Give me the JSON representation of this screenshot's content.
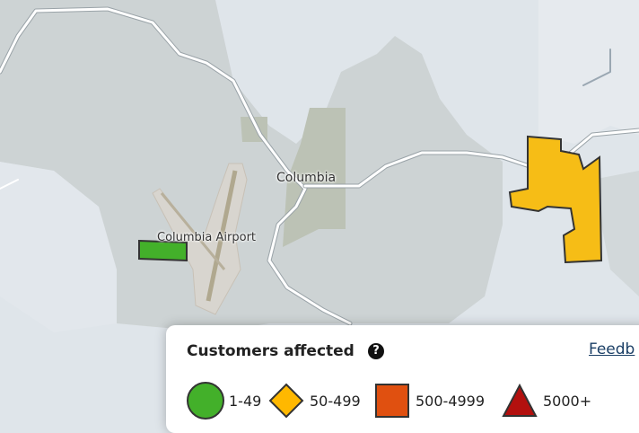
{
  "map": {
    "labels": {
      "city": "Columbia",
      "airport": "Columbia Airport"
    },
    "colors": {
      "background": "#dfe5ea",
      "land": "#c8cfcf",
      "park": "#b9c0b1",
      "road": "#ffffff"
    }
  },
  "legend": {
    "title": "Customers affected",
    "help_icon": "?",
    "feedback_link": "Feedb",
    "items": [
      {
        "label": "1-49",
        "shape": "circle",
        "color": "#43b02a"
      },
      {
        "label": "50-499",
        "shape": "diamond",
        "color": "#ffb800"
      },
      {
        "label": "500-4999",
        "shape": "square",
        "color": "#e05010"
      },
      {
        "label": "5000+",
        "shape": "triangle",
        "color": "#b3100e"
      }
    ]
  },
  "outages": [
    {
      "severity": "1-49",
      "color": "#43b02a"
    },
    {
      "severity": "50-499",
      "color": "#f6bd16"
    }
  ]
}
